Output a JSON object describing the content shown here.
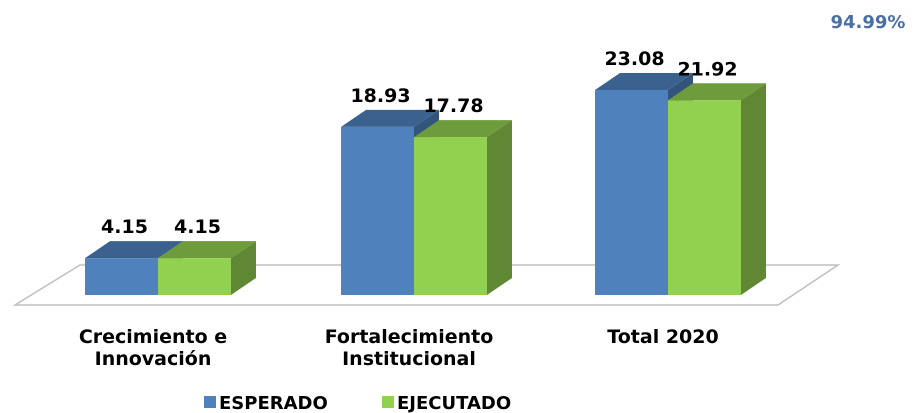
{
  "chart_data": {
    "type": "bar3d",
    "annotation": "94.99%",
    "categories": [
      "Crecimiento e Innovación",
      "Fortalecimiento Institucional",
      "Total 2020"
    ],
    "series": [
      {
        "name": "ESPERADO",
        "color": "#4f81bd",
        "values": [
          4.15,
          18.93,
          23.08
        ]
      },
      {
        "name": "EJECUTADO",
        "color": "#92d050",
        "values": [
          4.15,
          17.78,
          21.92
        ]
      }
    ]
  }
}
